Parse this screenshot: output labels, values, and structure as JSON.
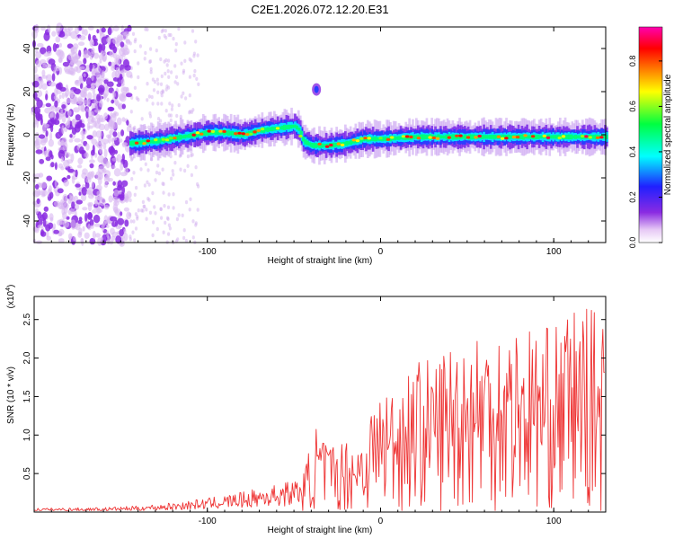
{
  "title": "C2E1.2026.072.12.20.E31",
  "chart_data": [
    {
      "type": "heatmap",
      "name": "spectrogram",
      "xlabel": "Height of straight line (km)",
      "ylabel": "Frequency (Hz)",
      "xlim": [
        -200,
        130
      ],
      "ylim": [
        -50,
        50
      ],
      "x_ticks": [
        -100,
        0,
        100
      ],
      "y_ticks": [
        -40,
        -20,
        0,
        20,
        40
      ],
      "colorbar": {
        "label": "Normalized spectral amplitude",
        "range": [
          0.0,
          0.95
        ],
        "ticks": [
          "0.0",
          "0.2",
          "0.4",
          "0.6",
          "0.8"
        ],
        "colormap": [
          "#ffffff",
          "#e6c8f5",
          "#8a2be2",
          "#2020ff",
          "#00ffff",
          "#00ff40",
          "#ffff00",
          "#ff8000",
          "#ff0000",
          "#ff00b0"
        ]
      },
      "ridge_center_hz": [
        [
          -145,
          -4
        ],
        [
          -130,
          -3
        ],
        [
          -115,
          -1
        ],
        [
          -100,
          1
        ],
        [
          -90,
          1
        ],
        [
          -80,
          0
        ],
        [
          -70,
          2
        ],
        [
          -60,
          3
        ],
        [
          -50,
          4
        ],
        [
          -47,
          2
        ],
        [
          -45,
          -3
        ],
        [
          -40,
          -5
        ],
        [
          -30,
          -5
        ],
        [
          -20,
          -4
        ],
        [
          -10,
          -2
        ],
        [
          0,
          -2
        ],
        [
          20,
          -1
        ],
        [
          40,
          -1
        ],
        [
          60,
          -1
        ],
        [
          80,
          -1
        ],
        [
          100,
          -1
        ],
        [
          120,
          -1
        ],
        [
          130,
          -1
        ]
      ],
      "noise_region_km": [
        -200,
        -145
      ],
      "isolated_blob": {
        "x": -37,
        "y": 21
      }
    },
    {
      "type": "line",
      "name": "snr",
      "xlabel": "Height of straight line (km)",
      "ylabel": "SNR (10 * v/v)",
      "y_multiplier": "(x10",
      "y_multiplier_exp": "4",
      "y_multiplier_close": ")",
      "xlim": [
        -200,
        130
      ],
      "ylim": [
        0,
        2.8
      ],
      "x_ticks": [
        -100,
        0,
        100
      ],
      "y_ticks": [
        0.5,
        1.0,
        1.5,
        2.0,
        2.5
      ],
      "y_tick_labels": [
        "0.5",
        "1.0",
        "1.5",
        "2.0",
        "2.5"
      ],
      "color": "#ee3333",
      "envelope": [
        [
          -200,
          0.05
        ],
        [
          -160,
          0.06
        ],
        [
          -140,
          0.08
        ],
        [
          -120,
          0.12
        ],
        [
          -100,
          0.18
        ],
        [
          -80,
          0.26
        ],
        [
          -60,
          0.36
        ],
        [
          -45,
          0.45
        ],
        [
          -38,
          1.15
        ],
        [
          -30,
          0.9
        ],
        [
          -20,
          0.95
        ],
        [
          -10,
          1.05
        ],
        [
          -2,
          1.6
        ],
        [
          10,
          1.7
        ],
        [
          20,
          2.0
        ],
        [
          30,
          2.0
        ],
        [
          40,
          2.25
        ],
        [
          60,
          2.45
        ],
        [
          80,
          2.45
        ],
        [
          100,
          2.4
        ],
        [
          115,
          2.75
        ],
        [
          130,
          2.5
        ]
      ]
    }
  ]
}
